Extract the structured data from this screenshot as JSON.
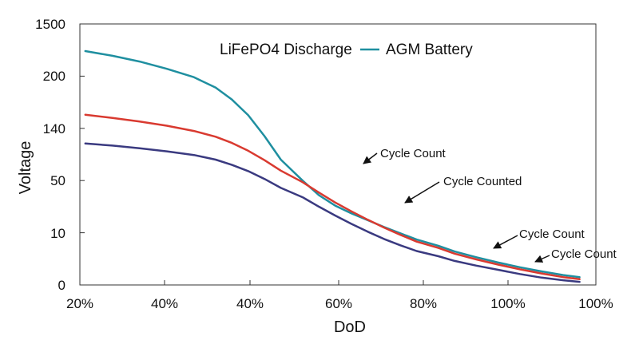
{
  "chart_data": {
    "type": "line",
    "xlabel": "DoD",
    "ylabel": "Voltage",
    "x_ticks": [
      "20%",
      "40%",
      "40%",
      "60%",
      "80%",
      "100%",
      "100%"
    ],
    "y_ticks": [
      "0",
      "10",
      "50",
      "140",
      "200",
      "1500"
    ],
    "grid": false,
    "legend": {
      "placement": "top-center",
      "entries": [
        {
          "label": "LiFePO4 Discharge",
          "color": null
        },
        {
          "label": "AGM Battery",
          "color": "#1f8fa0"
        }
      ]
    },
    "series": [
      {
        "name": "AGM Battery",
        "color": "#1f8fa0",
        "points": [
          [
            21,
            4.48
          ],
          [
            26,
            4.39
          ],
          [
            31,
            4.28
          ],
          [
            36,
            4.14
          ],
          [
            41,
            3.98
          ],
          [
            45,
            3.78
          ],
          [
            48,
            3.55
          ],
          [
            51,
            3.25
          ],
          [
            54,
            2.85
          ],
          [
            57,
            2.4
          ],
          [
            61,
            2.0
          ],
          [
            64,
            1.72
          ],
          [
            67,
            1.52
          ],
          [
            70,
            1.37
          ],
          [
            73,
            1.24
          ],
          [
            76,
            1.11
          ],
          [
            79,
            0.99
          ],
          [
            82,
            0.87
          ],
          [
            86,
            0.75
          ],
          [
            89,
            0.64
          ],
          [
            93,
            0.53
          ],
          [
            97,
            0.43
          ],
          [
            101,
            0.34
          ],
          [
            105,
            0.26
          ],
          [
            109,
            0.19
          ],
          [
            112,
            0.15
          ]
        ]
      },
      {
        "points": [
          [
            21,
            3.26
          ],
          [
            26,
            3.2
          ],
          [
            31,
            3.13
          ],
          [
            36,
            3.05
          ],
          [
            41,
            2.95
          ],
          [
            45,
            2.84
          ],
          [
            48,
            2.72
          ],
          [
            51,
            2.57
          ],
          [
            54,
            2.39
          ],
          [
            57,
            2.19
          ],
          [
            61,
            1.97
          ],
          [
            64,
            1.77
          ],
          [
            67,
            1.58
          ],
          [
            70,
            1.41
          ],
          [
            73,
            1.25
          ],
          [
            76,
            1.1
          ],
          [
            79,
            0.96
          ],
          [
            82,
            0.83
          ],
          [
            86,
            0.71
          ],
          [
            89,
            0.6
          ],
          [
            93,
            0.49
          ],
          [
            97,
            0.39
          ],
          [
            101,
            0.3
          ],
          [
            105,
            0.22
          ],
          [
            109,
            0.15
          ],
          [
            112,
            0.11
          ]
        ],
        "color": "#d93a30"
      },
      {
        "points": [
          [
            21,
            2.71
          ],
          [
            26,
            2.67
          ],
          [
            31,
            2.62
          ],
          [
            36,
            2.56
          ],
          [
            41,
            2.49
          ],
          [
            45,
            2.4
          ],
          [
            48,
            2.3
          ],
          [
            51,
            2.18
          ],
          [
            54,
            2.03
          ],
          [
            57,
            1.86
          ],
          [
            61,
            1.68
          ],
          [
            64,
            1.5
          ],
          [
            67,
            1.33
          ],
          [
            70,
            1.17
          ],
          [
            73,
            1.02
          ],
          [
            76,
            0.88
          ],
          [
            79,
            0.76
          ],
          [
            82,
            0.65
          ],
          [
            86,
            0.55
          ],
          [
            89,
            0.46
          ],
          [
            93,
            0.37
          ],
          [
            97,
            0.29
          ],
          [
            101,
            0.21
          ],
          [
            105,
            0.14
          ],
          [
            109,
            0.09
          ],
          [
            112,
            0.06
          ]
        ],
        "color": "#3a3a80"
      }
    ],
    "annotations": [
      {
        "text": "Cycle Count",
        "target": [
          67,
          2.3
        ]
      },
      {
        "text": "Cycle Counted",
        "target": [
          79,
          1.55
        ]
      },
      {
        "text": "Cycle Count",
        "target": [
          99,
          0.68
        ]
      },
      {
        "text": "Cycle Count",
        "target": [
          108,
          0.4
        ]
      }
    ]
  }
}
